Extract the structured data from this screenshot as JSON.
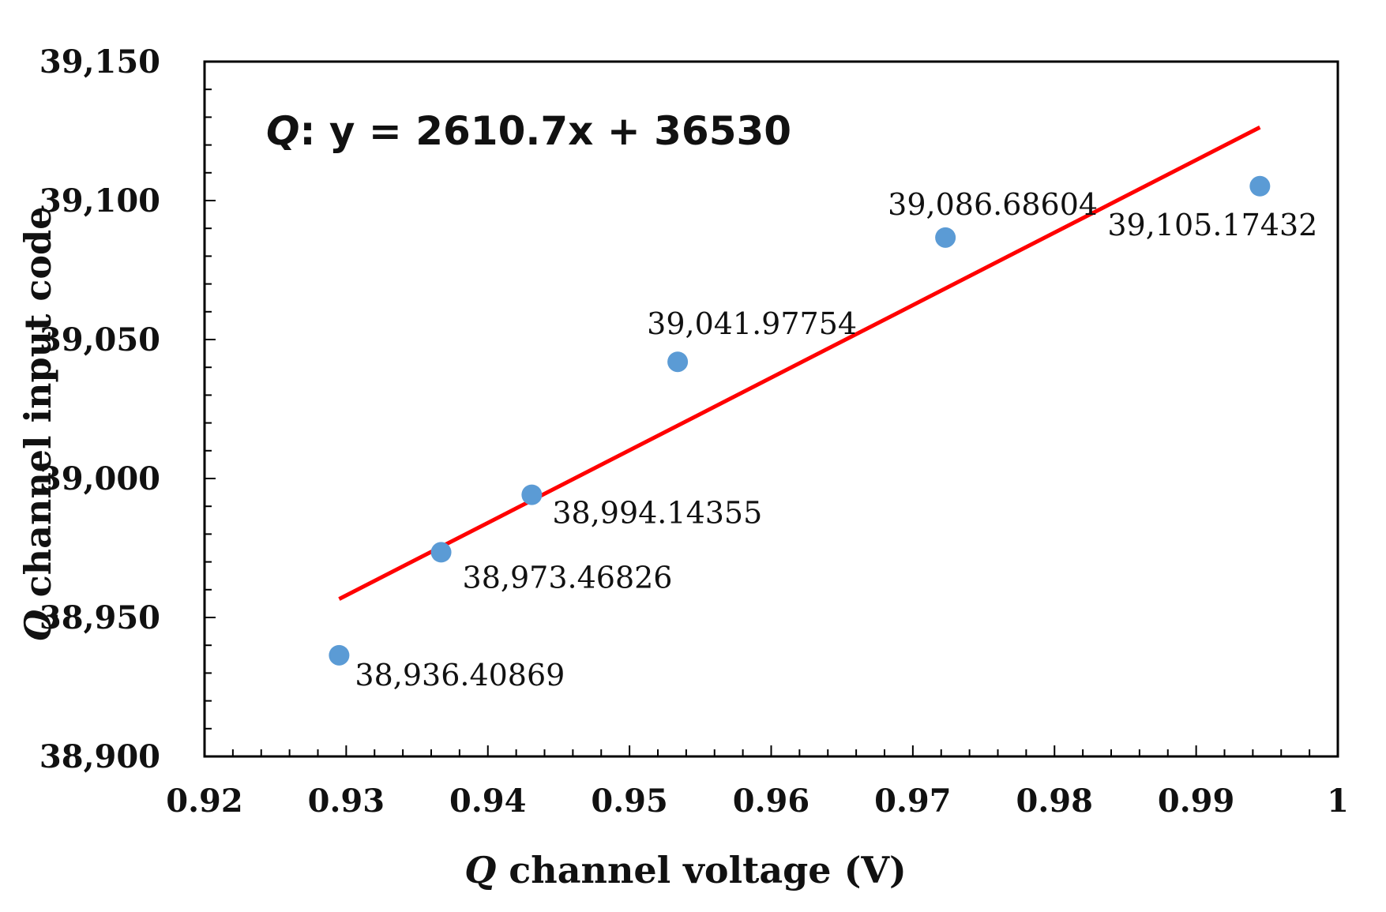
{
  "chart_data": {
    "type": "scatter",
    "title": "",
    "xlabel_var": "Q",
    "xlabel_rest": " channel voltage (V)",
    "ylabel_var": "Q",
    "ylabel_rest": " channel input code",
    "xlim": [
      0.92,
      1.0
    ],
    "ylim": [
      38900,
      39150
    ],
    "x_ticks": [
      0.92,
      0.93,
      0.94,
      0.95,
      0.96,
      0.97,
      0.98,
      0.99,
      1.0
    ],
    "x_tick_labels": [
      "0.92",
      "0.93",
      "0.94",
      "0.95",
      "0.96",
      "0.97",
      "0.98",
      "0.99",
      "1"
    ],
    "y_ticks": [
      38900,
      38950,
      39000,
      39050,
      39100,
      39150
    ],
    "y_tick_labels": [
      "38,900",
      "38,950",
      "39,000",
      "39,050",
      "39,100",
      "39,150"
    ],
    "series": [
      {
        "name": "Q channel",
        "color": "#5B9BD5",
        "points": [
          {
            "x": 0.9295,
            "y": 38936.40869,
            "label": "38,936.40869"
          },
          {
            "x": 0.9367,
            "y": 38973.46826,
            "label": "38,973.46826"
          },
          {
            "x": 0.9431,
            "y": 38994.14355,
            "label": "38,994.14355"
          },
          {
            "x": 0.9534,
            "y": 39041.97754,
            "label": "39,041.97754"
          },
          {
            "x": 0.9723,
            "y": 39086.68604,
            "label": "39,086.68604"
          },
          {
            "x": 0.9945,
            "y": 39105.17432,
            "label": "39,105.17432"
          }
        ]
      }
    ],
    "trendline": {
      "type": "linear",
      "slope": 2610.7,
      "intercept": 36530,
      "x_range": [
        0.9295,
        0.9945
      ],
      "color": "#FF0000",
      "equation_var": "Q",
      "equation_rest": ": y = 2610.7x + 36530"
    }
  }
}
